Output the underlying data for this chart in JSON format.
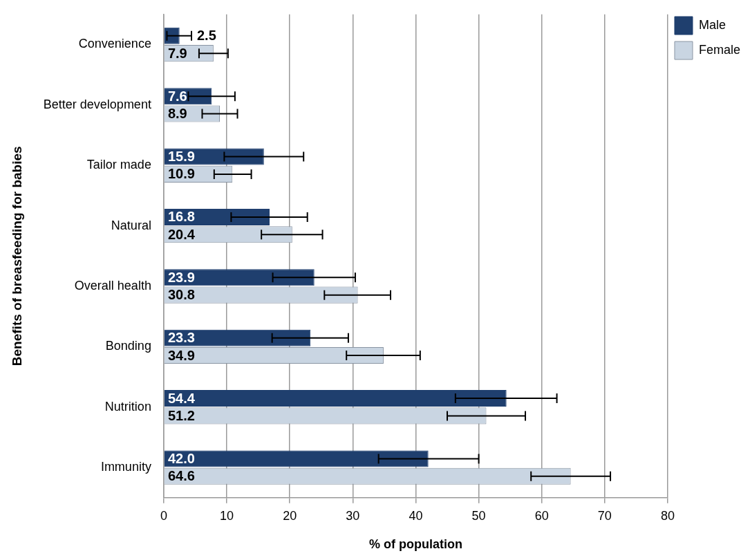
{
  "chart_data": {
    "type": "bar",
    "orientation": "horizontal",
    "xlabel": "% of population",
    "ylabel": "Benefits of breasfeeding for babies",
    "categories": [
      "Convenience",
      "Better development",
      "Tailor made",
      "Natural",
      "Overall health",
      "Bonding",
      "Nutrition",
      "Immunity"
    ],
    "series": [
      {
        "name": "Male",
        "color": "#1f3f6e",
        "values": [
          2.5,
          7.6,
          15.9,
          16.8,
          23.9,
          23.3,
          54.4,
          42.0
        ],
        "value_labels": [
          "2.5",
          "7.6",
          "15.9",
          "16.8",
          "23.9",
          "23.3",
          "54.4",
          "42.0"
        ],
        "errors": [
          [
            0.5,
            4.4
          ],
          [
            3.9,
            11.3
          ],
          [
            9.6,
            22.2
          ],
          [
            10.7,
            22.8
          ],
          [
            17.3,
            30.4
          ],
          [
            17.2,
            29.3
          ],
          [
            46.3,
            62.4
          ],
          [
            34.1,
            50.0
          ]
        ]
      },
      {
        "name": "Female",
        "color": "#c9d5e2",
        "values": [
          7.9,
          8.9,
          10.9,
          20.4,
          30.8,
          34.9,
          51.2,
          64.6
        ],
        "value_labels": [
          "7.9",
          "8.9",
          "10.9",
          "20.4",
          "30.8",
          "34.9",
          "51.2",
          "64.6"
        ],
        "errors": [
          [
            5.6,
            10.2
          ],
          [
            6.1,
            11.7
          ],
          [
            8.0,
            13.9
          ],
          [
            15.5,
            25.2
          ],
          [
            25.5,
            36.0
          ],
          [
            29.0,
            40.7
          ],
          [
            45.0,
            57.4
          ],
          [
            58.3,
            70.9
          ]
        ]
      }
    ],
    "xlim": [
      0,
      80
    ],
    "xticks": [
      0,
      10,
      20,
      30,
      40,
      50,
      60,
      70,
      80
    ],
    "grid": "x",
    "legend": "top right"
  }
}
